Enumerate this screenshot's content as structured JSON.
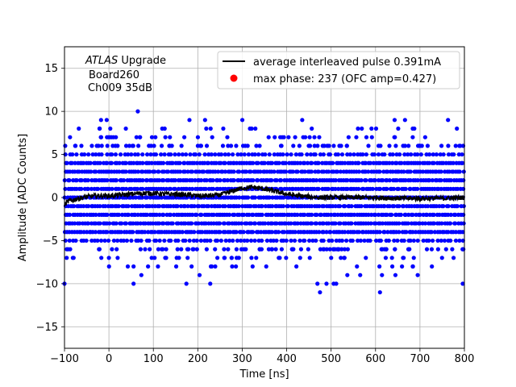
{
  "chart_data": {
    "type": "scatter",
    "xlabel": "Time [ns]",
    "ylabel": "Amplitude [ADC Counts]",
    "xlim": [
      -100,
      800
    ],
    "ylim": [
      -17.5,
      17.5
    ],
    "xticks": [
      -100,
      0,
      100,
      200,
      300,
      400,
      500,
      600,
      700,
      800
    ],
    "yticks": [
      -15,
      -10,
      -5,
      0,
      5,
      10,
      15
    ],
    "grid": true,
    "legend_position": "top-right",
    "annotation": {
      "experiment": "ATLAS",
      "experiment_suffix": " Upgrade",
      "line2": "Board260",
      "line3": "Ch009 35dB"
    },
    "series": [
      {
        "name": "average interleaved pulse 0.391mA",
        "kind": "line",
        "color": "#000000",
        "x": [
          -100,
          -90,
          -75,
          -50,
          -25,
          0,
          25,
          50,
          75,
          100,
          125,
          150,
          175,
          200,
          225,
          250,
          275,
          300,
          325,
          350,
          375,
          400,
          425,
          450,
          475,
          500,
          550,
          600,
          650,
          700,
          750,
          800
        ],
        "y": [
          -0.8,
          -0.4,
          -0.2,
          0.1,
          0.2,
          0.2,
          0.3,
          0.4,
          0.5,
          0.5,
          0.4,
          0.4,
          0.3,
          0.2,
          0.2,
          0.3,
          0.7,
          1.1,
          1.2,
          1.0,
          0.7,
          0.4,
          0.2,
          0.1,
          0.0,
          0.0,
          0.0,
          0.0,
          -0.1,
          -0.1,
          -0.1,
          0.0
        ]
      },
      {
        "name": "max phase: 237 (OFC amp=0.427)",
        "kind": "marker",
        "color": "#ff0000",
        "x": [
          237
        ],
        "y": [
          0.427
        ]
      },
      {
        "name": "samples",
        "kind": "scatter",
        "color": "#0000ff",
        "x_range": [
          -100,
          800
        ],
        "levels": [
          -11,
          -10,
          -9,
          -8,
          -7,
          -6,
          -5,
          -4,
          -3,
          -2,
          -1,
          0,
          1,
          2,
          3,
          4,
          5,
          6,
          7,
          8,
          9,
          10
        ],
        "outliers": [
          {
            "x": 65,
            "y": 10
          },
          {
            "x": 435,
            "y": 9
          },
          {
            "x": -5,
            "y": 9
          },
          {
            "x": -100,
            "y": -10
          },
          {
            "x": 228,
            "y": -10
          },
          {
            "x": 475,
            "y": -11
          },
          {
            "x": 610,
            "y": -11
          }
        ]
      }
    ]
  }
}
